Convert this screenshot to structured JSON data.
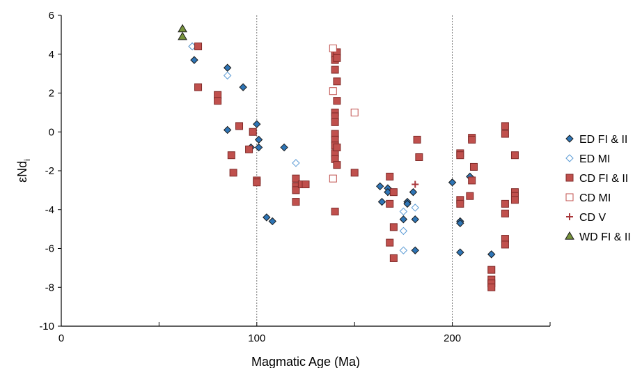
{
  "chart_data": {
    "type": "scatter",
    "xlabel": "Magmatic Age (Ma)",
    "ylabel": "εNd",
    "ylabel_subscript": "i",
    "xlim": [
      0,
      250
    ],
    "ylim": [
      -10,
      6
    ],
    "x_ticks": [
      0,
      100,
      200
    ],
    "y_ticks": [
      -10,
      -8,
      -6,
      -4,
      -2,
      0,
      2,
      4,
      6
    ],
    "vertical_gridlines": [
      100,
      200
    ],
    "legend_position": "right",
    "series": [
      {
        "name": "ED FI & II",
        "marker": "diamond",
        "fill": "#2e75b6",
        "stroke": "#1a1a1a",
        "points": [
          [
            67,
            4.4
          ],
          [
            68,
            3.7
          ],
          [
            85,
            3.3
          ],
          [
            85,
            0.1
          ],
          [
            93,
            2.3
          ],
          [
            97,
            -0.8
          ],
          [
            100,
            0.4
          ],
          [
            101,
            -0.4
          ],
          [
            101,
            -0.8
          ],
          [
            105,
            -4.4
          ],
          [
            108,
            -4.6
          ],
          [
            114,
            -0.8
          ],
          [
            163,
            -2.8
          ],
          [
            164,
            -3.6
          ],
          [
            167,
            -2.9
          ],
          [
            167,
            -3.1
          ],
          [
            175,
            -4.5
          ],
          [
            177,
            -3.6
          ],
          [
            177,
            -3.7
          ],
          [
            180,
            -3.1
          ],
          [
            181,
            -4.5
          ],
          [
            181,
            -6.1
          ],
          [
            200,
            -2.6
          ],
          [
            204,
            -4.6
          ],
          [
            204,
            -4.7
          ],
          [
            204,
            -6.2
          ],
          [
            209,
            -2.3
          ],
          [
            220,
            -6.3
          ]
        ]
      },
      {
        "name": "ED MI",
        "marker": "diamond-open",
        "fill": "#ffffff",
        "stroke": "#5b9bd5",
        "points": [
          [
            67,
            4.4
          ],
          [
            85,
            2.9
          ],
          [
            120,
            -1.6
          ],
          [
            175,
            -4.1
          ],
          [
            175,
            -5.1
          ],
          [
            175,
            -6.1
          ],
          [
            181,
            -3.9
          ]
        ]
      },
      {
        "name": "CD FI & II",
        "marker": "square",
        "fill": "#c0504d",
        "stroke": "#7f2a28",
        "points": [
          [
            70,
            4.4
          ],
          [
            70,
            2.3
          ],
          [
            80,
            1.9
          ],
          [
            80,
            1.6
          ],
          [
            87,
            -1.2
          ],
          [
            88,
            -2.1
          ],
          [
            91,
            0.3
          ],
          [
            96,
            -0.9
          ],
          [
            98,
            0.0
          ],
          [
            100,
            -2.5
          ],
          [
            100,
            -2.6
          ],
          [
            120,
            -2.4
          ],
          [
            120,
            -2.8
          ],
          [
            120,
            -3.0
          ],
          [
            120,
            -3.6
          ],
          [
            123,
            -2.7
          ],
          [
            125,
            -2.7
          ],
          [
            140,
            4.0
          ],
          [
            140,
            3.7
          ],
          [
            140,
            3.2
          ],
          [
            140,
            1.0
          ],
          [
            140,
            0.8
          ],
          [
            140,
            0.5
          ],
          [
            140,
            -0.1
          ],
          [
            140,
            -0.4
          ],
          [
            140,
            -0.7
          ],
          [
            140,
            -1.1
          ],
          [
            140,
            -1.4
          ],
          [
            140,
            -4.1
          ],
          [
            141,
            4.1
          ],
          [
            141,
            3.8
          ],
          [
            141,
            2.6
          ],
          [
            141,
            1.6
          ],
          [
            141,
            -0.8
          ],
          [
            141,
            -1.7
          ],
          [
            150,
            -2.1
          ],
          [
            168,
            -2.3
          ],
          [
            168,
            -3.7
          ],
          [
            168,
            -5.7
          ],
          [
            170,
            -3.1
          ],
          [
            170,
            -4.9
          ],
          [
            170,
            -6.5
          ],
          [
            182,
            -0.4
          ],
          [
            183,
            -1.3
          ],
          [
            204,
            -1.1
          ],
          [
            204,
            -1.2
          ],
          [
            204,
            -3.5
          ],
          [
            204,
            -3.7
          ],
          [
            209,
            -3.3
          ],
          [
            210,
            -0.3
          ],
          [
            210,
            -0.4
          ],
          [
            210,
            -2.5
          ],
          [
            211,
            -1.8
          ],
          [
            220,
            -7.1
          ],
          [
            220,
            -7.6
          ],
          [
            220,
            -7.8
          ],
          [
            220,
            -8.0
          ],
          [
            227,
            0.3
          ],
          [
            227,
            -0.1
          ],
          [
            227,
            -3.7
          ],
          [
            227,
            -4.2
          ],
          [
            227,
            -5.5
          ],
          [
            227,
            -5.8
          ],
          [
            232,
            -1.2
          ],
          [
            232,
            -3.1
          ],
          [
            232,
            -3.3
          ],
          [
            232,
            -3.5
          ]
        ]
      },
      {
        "name": "CD MI",
        "marker": "square-open",
        "fill": "#ffffff",
        "stroke": "#c0504d",
        "points": [
          [
            139,
            4.3
          ],
          [
            139,
            2.1
          ],
          [
            139,
            -2.4
          ],
          [
            150,
            1.0
          ]
        ]
      },
      {
        "name": "CD V",
        "marker": "plus",
        "fill": "#a9373b",
        "stroke": "#a9373b",
        "points": [
          [
            181,
            -2.7
          ]
        ]
      },
      {
        "name": "WD FI & II",
        "marker": "triangle",
        "fill": "#77933c",
        "stroke": "#1a1a1a",
        "points": [
          [
            62,
            5.3
          ],
          [
            62,
            4.9
          ]
        ]
      }
    ]
  }
}
